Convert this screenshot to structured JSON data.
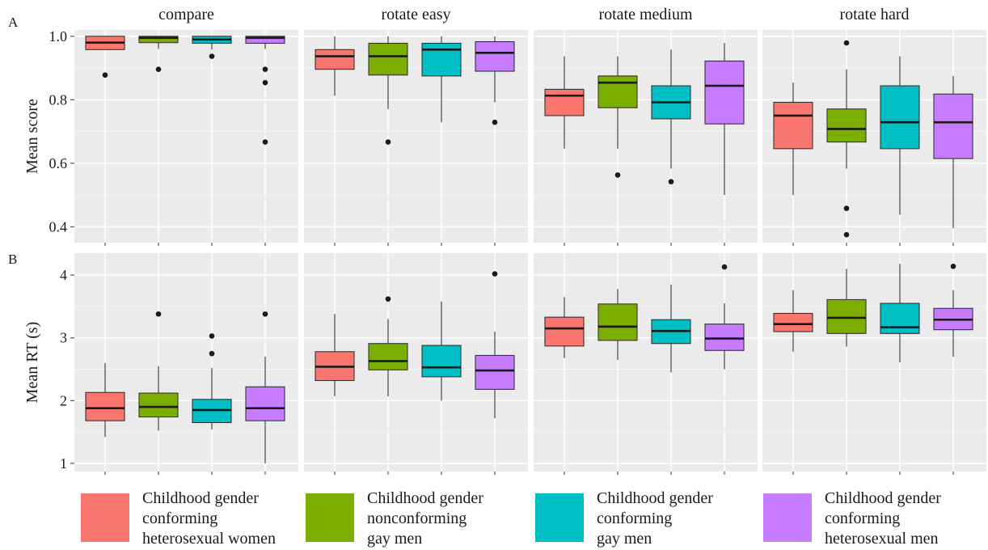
{
  "panel_labels": [
    "A",
    "B"
  ],
  "chart_data": [
    {
      "type": "boxplot",
      "panel": "A",
      "ylabel": "Mean score",
      "ylim": [
        0.35,
        1.02
      ],
      "yticks": [
        0.4,
        0.6,
        0.8,
        1.0
      ],
      "ytick_labels": [
        "0.4",
        "0.6",
        "0.8",
        "1.0"
      ],
      "facets": [
        "compare",
        "rotate easy",
        "rotate medium",
        "rotate hard"
      ],
      "grid": true,
      "groups": [
        [
          {
            "q1": 0.958,
            "median": 0.98,
            "q3": 1.0,
            "whisker_low": 0.958,
            "whisker_high": 1.0,
            "outliers": [
              0.878
            ]
          },
          {
            "q1": 0.98,
            "median": 0.995,
            "q3": 1.0,
            "whisker_low": 0.96,
            "whisker_high": 1.0,
            "outliers": [
              0.896
            ]
          },
          {
            "q1": 0.978,
            "median": 0.99,
            "q3": 1.0,
            "whisker_low": 0.958,
            "whisker_high": 1.0,
            "outliers": [
              0.937
            ]
          },
          {
            "q1": 0.978,
            "median": 0.995,
            "q3": 1.0,
            "whisker_low": 0.96,
            "whisker_high": 1.0,
            "outliers": [
              0.896,
              0.854,
              0.667
            ]
          }
        ],
        [
          {
            "q1": 0.896,
            "median": 0.937,
            "q3": 0.958,
            "whisker_low": 0.813,
            "whisker_high": 1.0,
            "outliers": []
          },
          {
            "q1": 0.878,
            "median": 0.937,
            "q3": 0.978,
            "whisker_low": 0.771,
            "whisker_high": 1.0,
            "outliers": [
              0.667
            ]
          },
          {
            "q1": 0.875,
            "median": 0.958,
            "q3": 0.978,
            "whisker_low": 0.729,
            "whisker_high": 1.0,
            "outliers": []
          },
          {
            "q1": 0.89,
            "median": 0.948,
            "q3": 0.983,
            "whisker_low": 0.792,
            "whisker_high": 1.0,
            "outliers": [
              0.729
            ]
          }
        ],
        [
          {
            "q1": 0.75,
            "median": 0.813,
            "q3": 0.833,
            "whisker_low": 0.646,
            "whisker_high": 0.937,
            "outliers": []
          },
          {
            "q1": 0.775,
            "median": 0.854,
            "q3": 0.875,
            "whisker_low": 0.646,
            "whisker_high": 0.937,
            "outliers": [
              0.563
            ]
          },
          {
            "q1": 0.74,
            "median": 0.792,
            "q3": 0.844,
            "whisker_low": 0.583,
            "whisker_high": 0.958,
            "outliers": [
              0.542
            ]
          },
          {
            "q1": 0.724,
            "median": 0.844,
            "q3": 0.922,
            "whisker_low": 0.5,
            "whisker_high": 0.979,
            "outliers": []
          }
        ],
        [
          {
            "q1": 0.646,
            "median": 0.75,
            "q3": 0.792,
            "whisker_low": 0.5,
            "whisker_high": 0.854,
            "outliers": []
          },
          {
            "q1": 0.667,
            "median": 0.708,
            "q3": 0.771,
            "whisker_low": 0.583,
            "whisker_high": 0.896,
            "outliers": [
              0.979,
              0.458,
              0.375
            ]
          },
          {
            "q1": 0.646,
            "median": 0.729,
            "q3": 0.844,
            "whisker_low": 0.438,
            "whisker_high": 0.937,
            "outliers": []
          },
          {
            "q1": 0.615,
            "median": 0.729,
            "q3": 0.818,
            "whisker_low": 0.396,
            "whisker_high": 0.875,
            "outliers": []
          }
        ]
      ]
    },
    {
      "type": "boxplot",
      "panel": "B",
      "ylabel": "Mean   RT (s)",
      "ylim": [
        0.87,
        4.35
      ],
      "yticks": [
        1,
        2,
        3,
        4
      ],
      "ytick_labels": [
        "1",
        "2",
        "3",
        "4"
      ],
      "facets": [
        "compare",
        "rotate easy",
        "rotate medium",
        "rotate hard"
      ],
      "grid": true,
      "groups": [
        [
          {
            "q1": 1.68,
            "median": 1.88,
            "q3": 2.13,
            "whisker_low": 1.42,
            "whisker_high": 2.6,
            "outliers": []
          },
          {
            "q1": 1.74,
            "median": 1.9,
            "q3": 2.12,
            "whisker_low": 1.52,
            "whisker_high": 2.55,
            "outliers": [
              3.38
            ]
          },
          {
            "q1": 1.65,
            "median": 1.85,
            "q3": 2.02,
            "whisker_low": 1.54,
            "whisker_high": 2.52,
            "outliers": [
              3.03,
              2.75
            ]
          },
          {
            "q1": 1.68,
            "median": 1.88,
            "q3": 2.22,
            "whisker_low": 1.0,
            "whisker_high": 2.7,
            "outliers": [
              3.38
            ]
          }
        ],
        [
          {
            "q1": 2.32,
            "median": 2.54,
            "q3": 2.78,
            "whisker_low": 2.07,
            "whisker_high": 3.38,
            "outliers": []
          },
          {
            "q1": 2.49,
            "median": 2.63,
            "q3": 2.91,
            "whisker_low": 2.07,
            "whisker_high": 3.3,
            "outliers": [
              3.62
            ]
          },
          {
            "q1": 2.38,
            "median": 2.53,
            "q3": 2.88,
            "whisker_low": 2.0,
            "whisker_high": 3.58,
            "outliers": []
          },
          {
            "q1": 2.18,
            "median": 2.48,
            "q3": 2.72,
            "whisker_low": 1.72,
            "whisker_high": 3.1,
            "outliers": [
              4.02
            ]
          }
        ],
        [
          {
            "q1": 2.87,
            "median": 3.15,
            "q3": 3.33,
            "whisker_low": 2.68,
            "whisker_high": 3.65,
            "outliers": []
          },
          {
            "q1": 2.96,
            "median": 3.18,
            "q3": 3.54,
            "whisker_low": 2.65,
            "whisker_high": 3.78,
            "outliers": []
          },
          {
            "q1": 2.91,
            "median": 3.11,
            "q3": 3.29,
            "whisker_low": 2.45,
            "whisker_high": 3.85,
            "outliers": []
          },
          {
            "q1": 2.8,
            "median": 2.99,
            "q3": 3.22,
            "whisker_low": 2.5,
            "whisker_high": 3.55,
            "outliers": [
              4.13
            ]
          }
        ],
        [
          {
            "q1": 3.1,
            "median": 3.22,
            "q3": 3.39,
            "whisker_low": 2.78,
            "whisker_high": 3.76,
            "outliers": []
          },
          {
            "q1": 3.07,
            "median": 3.32,
            "q3": 3.61,
            "whisker_low": 2.86,
            "whisker_high": 4.1,
            "outliers": []
          },
          {
            "q1": 3.07,
            "median": 3.17,
            "q3": 3.55,
            "whisker_low": 2.61,
            "whisker_high": 4.18,
            "outliers": []
          },
          {
            "q1": 3.13,
            "median": 3.29,
            "q3": 3.47,
            "whisker_low": 2.7,
            "whisker_high": 3.76,
            "outliers": [
              4.14
            ]
          }
        ]
      ]
    }
  ],
  "legend": {
    "items": [
      {
        "color": "#F8766D",
        "lines": [
          "Childhood gender",
          "conforming",
          "heterosexual women"
        ]
      },
      {
        "color": "#7CAE00",
        "lines": [
          "Childhood gender",
          "nonconforming",
          "gay men"
        ]
      },
      {
        "color": "#00BFC4",
        "lines": [
          "Childhood gender",
          "conforming",
          "gay men"
        ]
      },
      {
        "color": "#C77CFF",
        "lines": [
          "Childhood gender",
          "conforming",
          "heterosexual men"
        ]
      }
    ]
  },
  "colors": {
    "panel_background": "#EBEBEB",
    "grid": "#FFFFFF",
    "box_outline": "#333333",
    "outlier": "#1a1a1a"
  }
}
